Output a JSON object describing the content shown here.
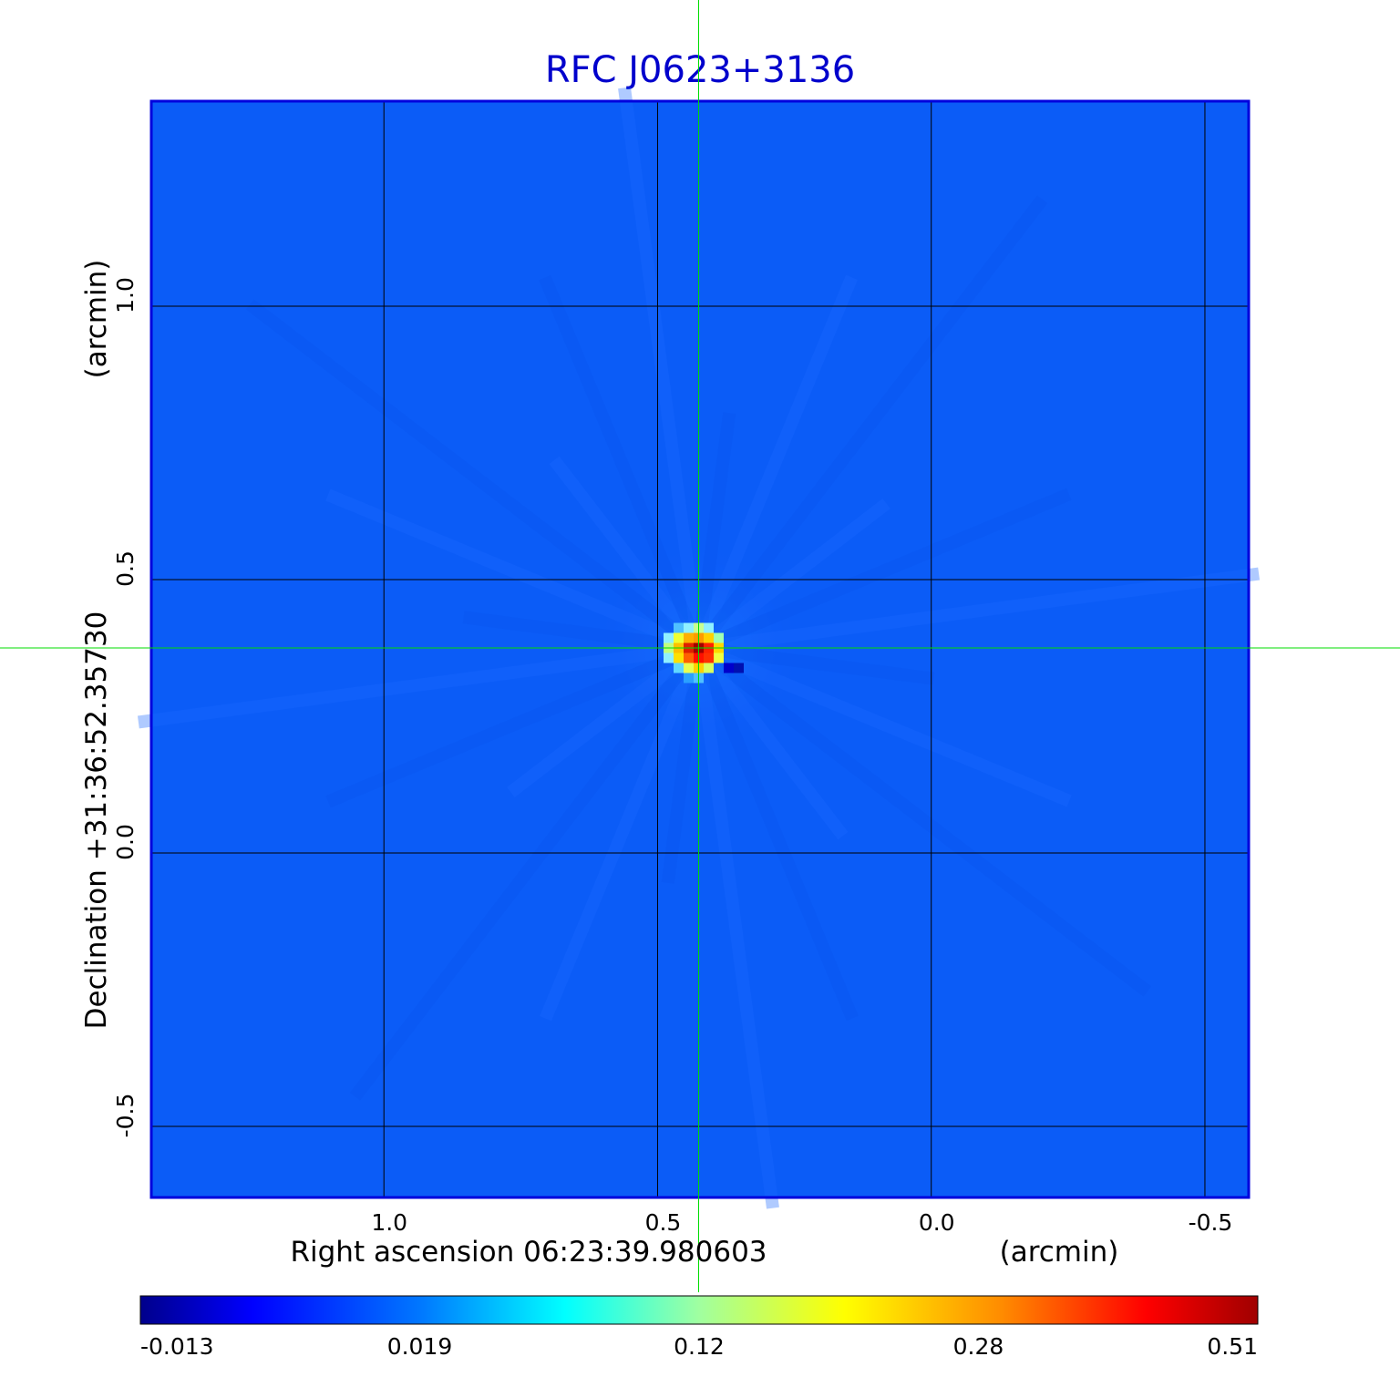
{
  "chart_data": {
    "type": "heatmap",
    "title": "RFC J0623+3136",
    "title_color": "#0000cc",
    "xlabel": "Right ascension  06:23:39.980603",
    "xlabel_unit": "(arcmin)",
    "ylabel": "Declination  +31:36:52.35730",
    "ylabel_unit": "(arcmin)",
    "x_ticks": [
      "1.0",
      "0.5",
      "0.0",
      "-0.5"
    ],
    "x_tick_values": [
      1.0,
      0.5,
      0.0,
      -0.5
    ],
    "y_ticks": [
      "1.0",
      "0.5",
      "0.0",
      "-0.5"
    ],
    "y_tick_values": [
      1.0,
      0.5,
      0.0,
      -0.5
    ],
    "xlim": [
      1.425,
      -0.58
    ],
    "ylim": [
      -0.63,
      1.375
    ],
    "grid": true,
    "crosshair": {
      "x": 0.425,
      "y": 0.375,
      "color": "#00dd00"
    },
    "source": {
      "x": 0.425,
      "y": 0.375,
      "peak": 0.51
    },
    "background_value": 0.0,
    "colorbar": {
      "colormap": "jet",
      "tick_labels": [
        "-0.013",
        "0.019",
        "0.12",
        "0.28",
        "0.51"
      ],
      "min": -0.013,
      "max": 0.51
    }
  }
}
